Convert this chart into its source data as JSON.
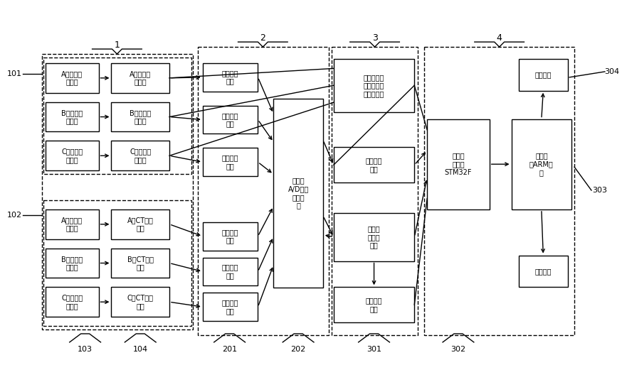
{
  "bg_color": "#ffffff",
  "boxes": {
    "vA_in": {
      "text": "A相电压输\n入端口"
    },
    "vB_in": {
      "text": "B相电压输\n入端口"
    },
    "vC_in": {
      "text": "C相电压输\n入端口"
    },
    "vA_div": {
      "text": "A相电阻分\n压电路"
    },
    "vB_div": {
      "text": "B相电阻分\n压电路"
    },
    "vC_div": {
      "text": "C相电阻分\n压电路"
    },
    "iA_in": {
      "text": "A相电流输\n入端口"
    },
    "iB_in": {
      "text": "B相电流输\n入端口"
    },
    "iC_in": {
      "text": "C相电流输\n入端口"
    },
    "iA_CT": {
      "text": "A相CT取样\n电路"
    },
    "iB_CT": {
      "text": "B相CT取样\n电路"
    },
    "iC_CT": {
      "text": "C相CT取样\n电路"
    },
    "sigA": {
      "text": "信号放大\n电路"
    },
    "sigB": {
      "text": "信号放大\n电路"
    },
    "sigC": {
      "text": "信号放大\n电路"
    },
    "sigD": {
      "text": "信号放大\n电路"
    },
    "sigE": {
      "text": "信号放大\n电路"
    },
    "sigF": {
      "text": "信号放大\n电路"
    },
    "adc": {
      "text": "八通道\nA/D模数\n转换电\n路"
    },
    "tp": {
      "text": "三路电压和\n三路电流过\n零比较电路"
    },
    "tc": {
      "text": "时段控制\n电路"
    },
    "st": {
      "text": "采样时\n序控制\n电路"
    },
    "po": {
      "text": "脉冲输出\n电路"
    },
    "dp": {
      "text": "数据处\n理单元\nSTM32F"
    },
    "hmi": {
      "text": "人机界\n面ARM系\n统"
    },
    "disp": {
      "text": "显示单元"
    },
    "key": {
      "text": "按键单元"
    }
  },
  "group_labels": [
    "1",
    "2",
    "3",
    "4"
  ],
  "side_labels": [
    "101",
    "102",
    "303",
    "304"
  ],
  "bottom_labels": [
    "103",
    "104",
    "201",
    "202",
    "301",
    "302"
  ]
}
